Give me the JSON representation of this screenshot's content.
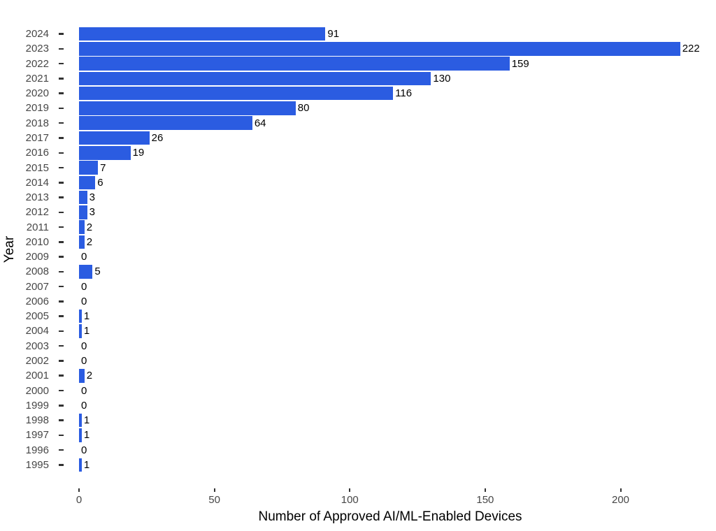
{
  "chart_data": {
    "type": "bar",
    "orientation": "horizontal",
    "title": "",
    "xlabel": "Number of Approved AI/ML-Enabled Devices",
    "ylabel": "Year",
    "categories": [
      "2024",
      "2023",
      "2022",
      "2021",
      "2020",
      "2019",
      "2018",
      "2017",
      "2016",
      "2015",
      "2014",
      "2013",
      "2012",
      "2011",
      "2010",
      "2009",
      "2008",
      "2007",
      "2006",
      "2005",
      "2004",
      "2003",
      "2002",
      "2001",
      "2000",
      "1999",
      "1998",
      "1997",
      "1996",
      "1995"
    ],
    "values": [
      91,
      222,
      159,
      130,
      116,
      80,
      64,
      26,
      19,
      7,
      6,
      3,
      3,
      2,
      2,
      0,
      5,
      0,
      0,
      1,
      1,
      0,
      0,
      2,
      0,
      0,
      1,
      1,
      0,
      1
    ],
    "x_ticks": [
      0,
      50,
      100,
      150,
      200
    ],
    "xlim": [
      0,
      230
    ],
    "bar_color": "#2B5CE1",
    "axis_text_color": "#474747",
    "value_label_color": "#000000",
    "value_labels_shown": true,
    "legend": "none",
    "grid": "off"
  }
}
